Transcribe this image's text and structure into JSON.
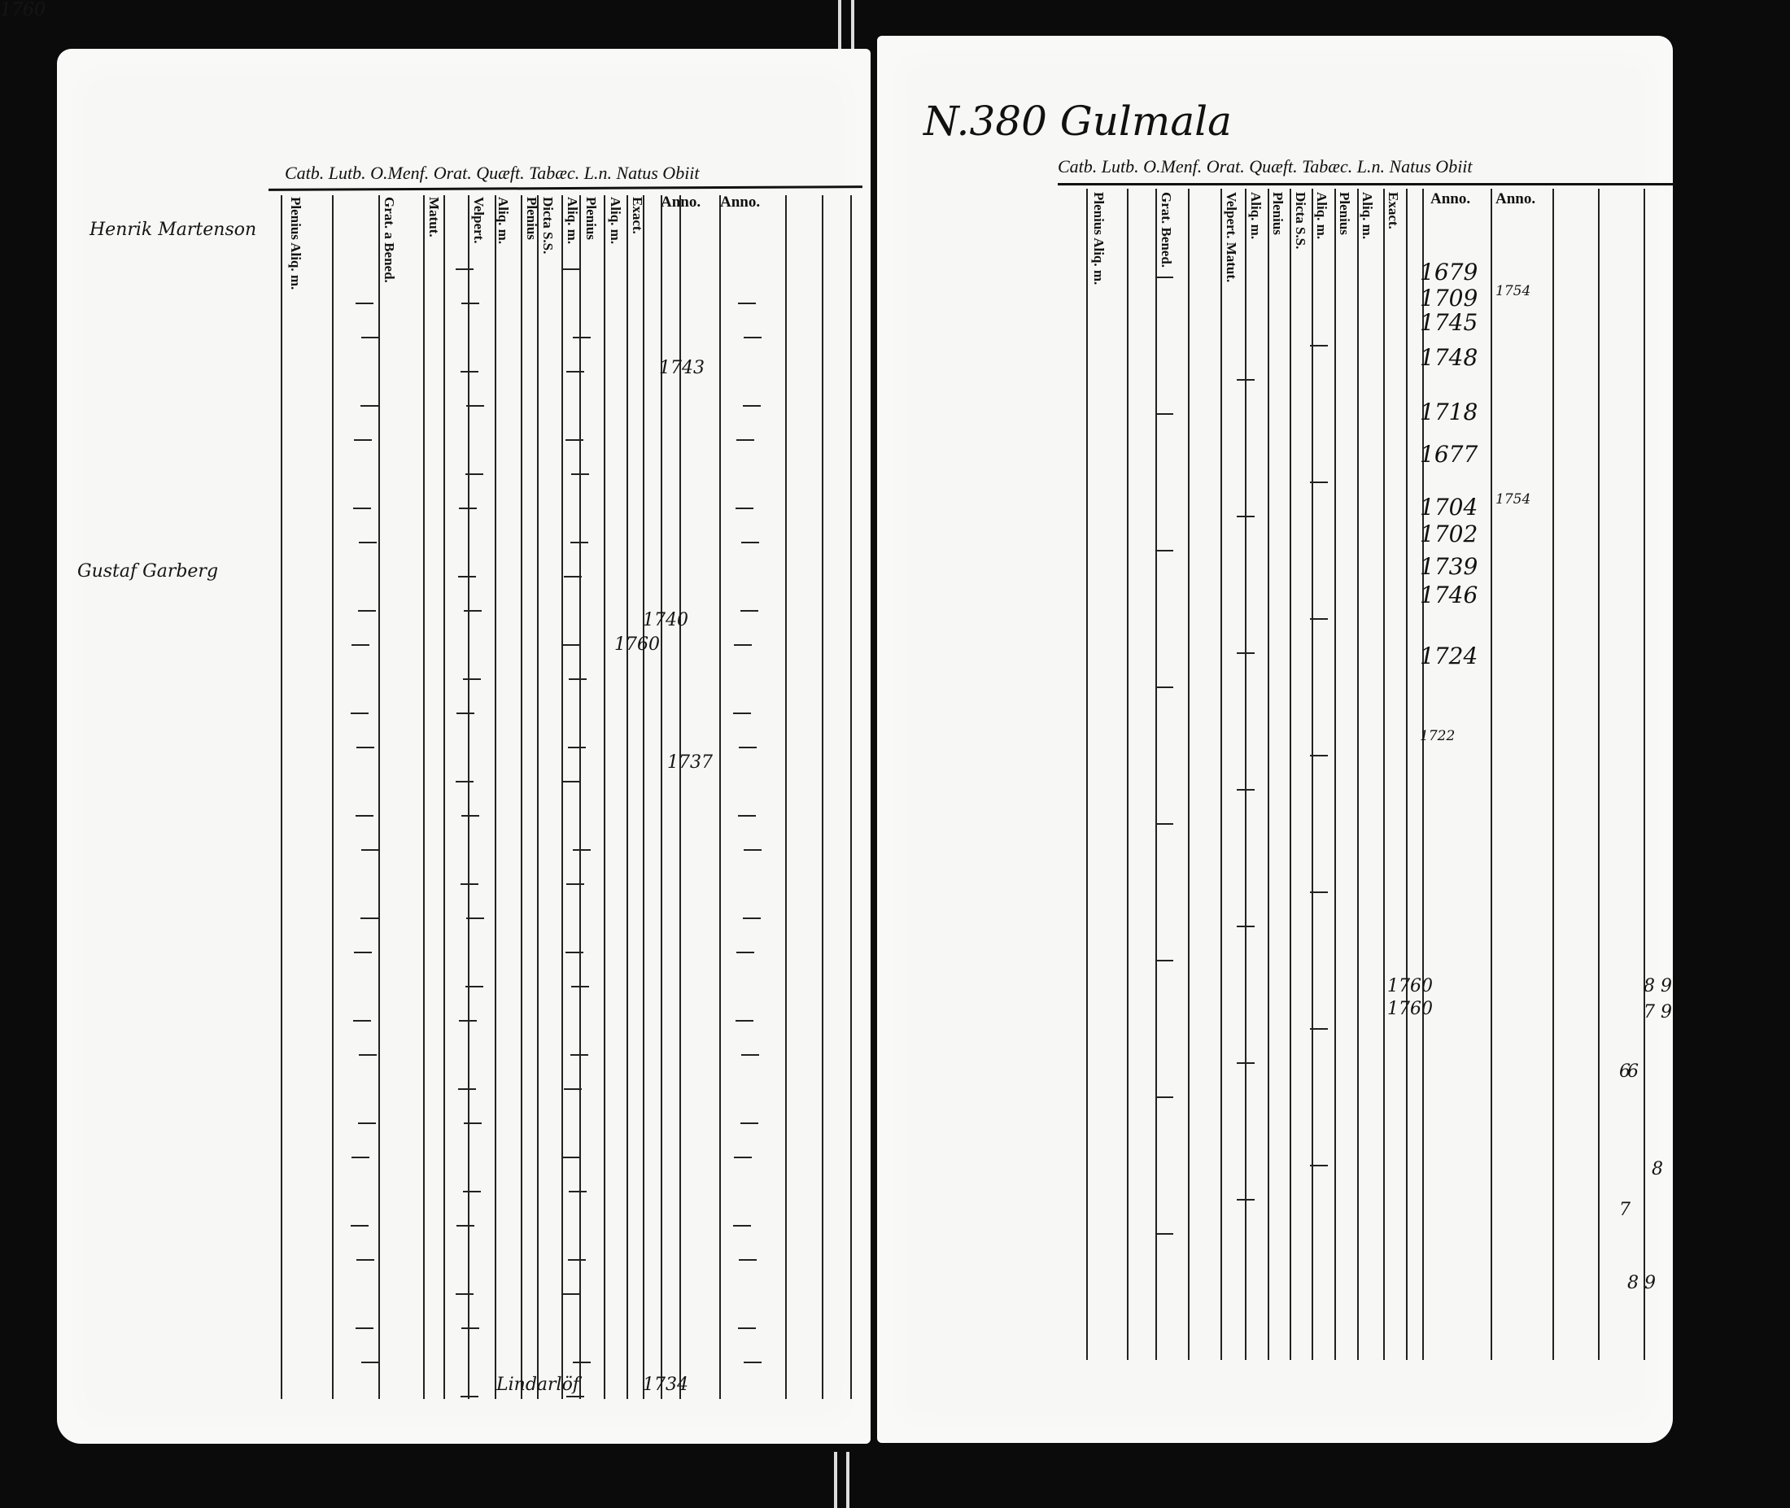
{
  "left_page": {
    "header": "Catb. Lutb. O.Menf. Orat. Quæft. Tabæc. L.n. Natus Obiit",
    "columns": [
      "Plenius Aliq. m.",
      "Grat. a Bened.",
      "Matut.",
      "Velpert.",
      "Aliq. m.",
      "Plenius",
      "Dicta S.S.",
      "Aliq. m.",
      "Plenius",
      "Aliq. m.",
      "Exact."
    ],
    "anno_labels": [
      "Anno.",
      "Anno."
    ],
    "entries": [
      {
        "name": "Henrik Martenson",
        "year": ""
      },
      {
        "name": "Gustaf Garberg",
        "year": "1760"
      },
      {
        "name": "",
        "year": "1740"
      },
      {
        "name": "",
        "year": "1760"
      },
      {
        "name": "",
        "year": "1743"
      },
      {
        "name": "",
        "year": "1737"
      },
      {
        "name": "Lindarlöf",
        "year": "1734"
      }
    ]
  },
  "right_page": {
    "title": "N.380 Gulmala",
    "header": "Catb. Lutb. O.Menf. Orat. Quæft. Tabæc. L.n. Natus Obiit",
    "columns": [
      "Plenius Aliq. m.",
      "Grat. Bened.",
      "Velpert. Matut.",
      "Aliq. m.",
      "Plenius",
      "Dicta S.S.",
      "Aliq. m.",
      "Plenius",
      "Aliq. m.",
      "Exact."
    ],
    "anno_labels": [
      "Anno.",
      "Anno."
    ],
    "natus_years": [
      "1679",
      "1709",
      "1745",
      "1748",
      "1718",
      "1677",
      "1704",
      "1702",
      "1739",
      "1746",
      "1724",
      "1722"
    ],
    "obiit_years": [
      "1754",
      "1754"
    ],
    "other_years": [
      "1760",
      "1760"
    ],
    "margin_numbers": [
      "6",
      "8 9",
      "7 9",
      "6",
      "8",
      "7",
      "8 9"
    ]
  }
}
